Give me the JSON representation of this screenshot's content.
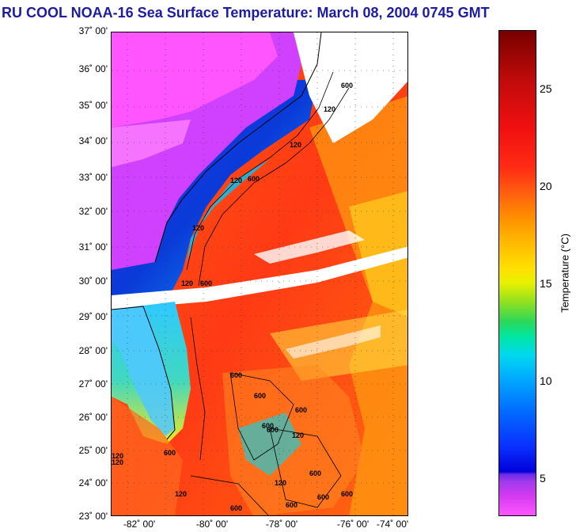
{
  "title": "RU COOL  NOAA-16  Sea Surface Temperature:  March 08, 2004 0745 GMT",
  "lat_ticks": [
    "37˚ 00'",
    "36˚ 00'",
    "35˚ 00'",
    "34˚ 00'",
    "33˚ 00'",
    "32˚ 00'",
    "31˚ 00'",
    "30˚ 00'",
    "29˚ 00'",
    "28˚ 00'",
    "27˚ 00'",
    "26˚ 00'",
    "25˚ 00'",
    "24˚ 00'",
    "23˚ 00'"
  ],
  "lon_ticks": [
    "-82˚ 00'",
    "-80˚ 00'",
    "-78˚ 00'",
    "-76˚ 00'",
    "-74˚ 00'"
  ],
  "colorbar": {
    "label": "Temperature (°C)",
    "ticks": [
      "25",
      "20",
      "15",
      "10",
      "5"
    ],
    "range": [
      3,
      28
    ]
  },
  "contour_labels": [
    "120",
    "600",
    "120",
    "600",
    "120",
    "120",
    "600",
    "120",
    "600",
    "600",
    "600",
    "120",
    "600",
    "600",
    "120",
    "600",
    "120",
    "600",
    "600",
    "120",
    "600",
    "600",
    "120",
    "600"
  ],
  "colors": {
    "title": "#1c1ca0",
    "land": "#ff55ff",
    "cloud": "#ffffff",
    "gulf_stream": "#ff3a14",
    "shelf": "#1a60ff"
  }
}
